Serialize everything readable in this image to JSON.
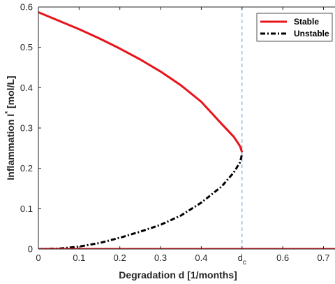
{
  "chart_data": {
    "type": "line",
    "xlabel": "Degradation d [1/months]",
    "ylabel_main": "Inflammation I",
    "ylabel_sup": "*",
    "ylabel_unit": "[mol/L]",
    "xlim": [
      0,
      0.73
    ],
    "ylim": [
      0,
      0.6
    ],
    "x_ticks": [
      {
        "value": 0,
        "label": "0"
      },
      {
        "value": 0.1,
        "label": "0.1"
      },
      {
        "value": 0.2,
        "label": "0.2"
      },
      {
        "value": 0.3,
        "label": "0.3"
      },
      {
        "value": 0.4,
        "label": "0.4"
      },
      {
        "value": 0.5,
        "label": "d",
        "sub": "c"
      },
      {
        "value": 0.6,
        "label": "0.6"
      },
      {
        "value": 0.7,
        "label": "0.7"
      }
    ],
    "y_ticks": [
      {
        "value": 0,
        "label": "0"
      },
      {
        "value": 0.1,
        "label": "0.1"
      },
      {
        "value": 0.2,
        "label": "0.2"
      },
      {
        "value": 0.3,
        "label": "0.3"
      },
      {
        "value": 0.4,
        "label": "0.4"
      },
      {
        "value": 0.5,
        "label": "0.5"
      },
      {
        "value": 0.6,
        "label": "0.6"
      }
    ],
    "grid": false,
    "legend": {
      "placement": "top-right"
    },
    "critical_line": {
      "x": 0.5,
      "color": "#5b9bd5",
      "style": "dashed"
    },
    "series": [
      {
        "name": "Stable",
        "color": "#e8141b",
        "style": "solid",
        "segments": [
          [
            [
              0,
              0.587
            ],
            [
              0.05,
              0.566
            ],
            [
              0.1,
              0.545
            ],
            [
              0.15,
              0.522
            ],
            [
              0.2,
              0.497
            ],
            [
              0.25,
              0.47
            ],
            [
              0.3,
              0.44
            ],
            [
              0.35,
              0.406
            ],
            [
              0.4,
              0.365
            ],
            [
              0.45,
              0.31
            ],
            [
              0.48,
              0.278
            ],
            [
              0.495,
              0.255
            ],
            [
              0.5,
              0.24
            ]
          ],
          [
            [
              0,
              0
            ],
            [
              0.73,
              0
            ]
          ]
        ]
      },
      {
        "name": "Unstable",
        "color": "#000000",
        "style": "dashdot",
        "segments": [
          [
            [
              0,
              0
            ],
            [
              0.05,
              0.001
            ],
            [
              0.1,
              0.006
            ],
            [
              0.15,
              0.015
            ],
            [
              0.2,
              0.028
            ],
            [
              0.25,
              0.043
            ],
            [
              0.3,
              0.06
            ],
            [
              0.35,
              0.083
            ],
            [
              0.4,
              0.115
            ],
            [
              0.45,
              0.155
            ],
            [
              0.48,
              0.19
            ],
            [
              0.495,
              0.215
            ],
            [
              0.5,
              0.235
            ]
          ]
        ]
      }
    ]
  }
}
